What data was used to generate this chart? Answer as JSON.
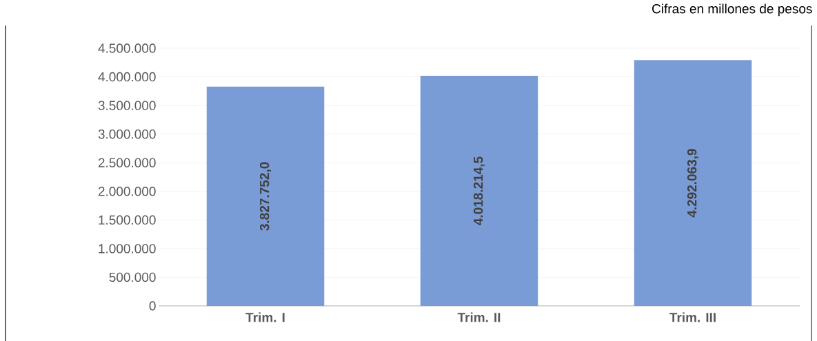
{
  "chart_data": {
    "type": "bar",
    "categories": [
      "Trim. I",
      "Trim. II",
      "Trim. III"
    ],
    "values": [
      3827752.0,
      4018214.5,
      4292063.9
    ],
    "value_labels": [
      "3.827.752,0",
      "4.018.214,5",
      "4.292.063,9"
    ],
    "color": "#7a9cd6",
    "ylim": [
      0,
      4500000
    ],
    "yticks": [
      {
        "value": 0,
        "label": "0"
      },
      {
        "value": 500000,
        "label": "500.000"
      },
      {
        "value": 1000000,
        "label": "1.000.000"
      },
      {
        "value": 1500000,
        "label": "1.500.000"
      },
      {
        "value": 2000000,
        "label": "2.000.000"
      },
      {
        "value": 2500000,
        "label": "2.500.000"
      },
      {
        "value": 3000000,
        "label": "3.000.000"
      },
      {
        "value": 3500000,
        "label": "3.500.000"
      },
      {
        "value": 4000000,
        "label": "4.000.000"
      },
      {
        "value": 4500000,
        "label": "4.500.000"
      }
    ],
    "grid": "y",
    "annotations": [
      "Cifras en millones de pesos"
    ]
  }
}
